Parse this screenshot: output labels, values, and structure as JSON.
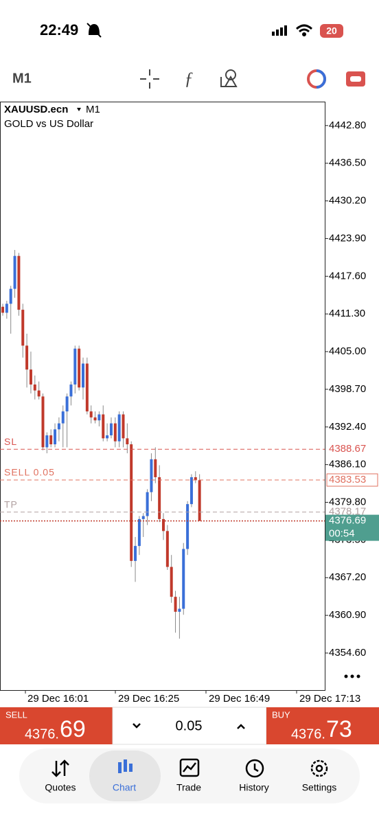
{
  "status_bar": {
    "time": "22:49",
    "battery": "20"
  },
  "toolbar": {
    "timeframe": "M1"
  },
  "chart_data": {
    "type": "candlestick",
    "symbol": "XAUUSD.ecn",
    "timeframe": "M1",
    "description": "GOLD vs US Dollar",
    "up_color": "#3a6fd8",
    "down_color": "#c0392b",
    "open": [
      4412.5,
      4411.5,
      4413,
      4415.5,
      4421,
      4412,
      4406,
      4402,
      4399.5,
      4398.5,
      4397.5,
      4389,
      4391,
      4389.5,
      4392,
      4393,
      4395,
      4397.5,
      4399.5,
      4405.5,
      4399,
      4403,
      4395,
      4394,
      4393.5,
      4394.5,
      4390.5,
      4391,
      4393,
      4390,
      4394.5,
      4390.5,
      4389.5,
      4370,
      4372.5,
      4377,
      4377.5,
      4381.5,
      4387,
      4384,
      4377,
      4375,
      4369,
      4364,
      4361.5,
      4362,
      4372,
      4379.5,
      4384,
      4383.5
    ],
    "high": [
      4413,
      4413.5,
      4416,
      4422,
      4421.5,
      4413,
      4408,
      4405,
      4401,
      4400,
      4398,
      4391.5,
      4392,
      4393,
      4394,
      4396,
      4398,
      4400,
      4406,
      4406,
      4404,
      4404,
      4396,
      4395,
      4395,
      4396,
      4393,
      4394,
      4394,
      4395,
      4395,
      4393,
      4390,
      4374,
      4377.5,
      4378,
      4382,
      4388,
      4389,
      4386,
      4378,
      4376,
      4371,
      4365,
      4364,
      4373,
      4380,
      4384.5,
      4385,
      4384.5
    ],
    "low": [
      4411,
      4410.5,
      4408,
      4414,
      4411,
      4404,
      4399,
      4398,
      4397,
      4397,
      4388.5,
      4388,
      4389,
      4389,
      4390,
      4389,
      4389,
      4396,
      4398,
      4398.5,
      4397,
      4394.5,
      4393,
      4393,
      4392.5,
      4390,
      4390,
      4390.5,
      4389,
      4389,
      4389,
      4388,
      4369,
      4366.5,
      4371,
      4374,
      4376,
      4380,
      4383,
      4376.5,
      4373.5,
      4368.5,
      4363,
      4358,
      4357,
      4361,
      4371,
      4379,
      4383,
      4376.7
    ],
    "close": [
      4411.5,
      4413,
      4415.5,
      4421,
      4412,
      4406,
      4402,
      4399.5,
      4398.5,
      4397.5,
      4389,
      4391,
      4389.5,
      4392,
      4393,
      4395,
      4397.5,
      4399.5,
      4405.5,
      4399,
      4403,
      4395,
      4394,
      4393.5,
      4394.5,
      4390.5,
      4391,
      4393,
      4390,
      4394.5,
      4390.5,
      4389.5,
      4370,
      4372.5,
      4377,
      4377.5,
      4381.5,
      4387,
      4384,
      4377,
      4375,
      4369,
      4364,
      4361.5,
      4362,
      4372,
      4379.5,
      4384,
      4383.5,
      4376.69
    ],
    "ylim": [
      4348.4,
      4446.8
    ],
    "yticks": [
      {
        "value": 4442.8,
        "label": "4442.80"
      },
      {
        "value": 4436.5,
        "label": "4436.50"
      },
      {
        "value": 4430.2,
        "label": "4430.20"
      },
      {
        "value": 4423.9,
        "label": "4423.90"
      },
      {
        "value": 4417.6,
        "label": "4417.60"
      },
      {
        "value": 4411.3,
        "label": "4411.30"
      },
      {
        "value": 4405,
        "label": "4405.00"
      },
      {
        "value": 4398.7,
        "label": "4398.70"
      },
      {
        "value": 4392.4,
        "label": "4392.40"
      },
      {
        "value": 4386.1,
        "label": "4386.10"
      },
      {
        "value": 4379.8,
        "label": "4379.80"
      },
      {
        "value": 4373.5,
        "label": "4373.50"
      },
      {
        "value": 4367.2,
        "label": "4367.20"
      },
      {
        "value": 4360.9,
        "label": "4360.90"
      },
      {
        "value": 4354.6,
        "label": "4354.60"
      }
    ],
    "x_labels": [
      "29 Dec 16:01",
      "29 Dec 16:25",
      "29 Dec 16:49",
      "29 Dec 17:13"
    ],
    "levels": [
      {
        "name": "SL",
        "value": 4388.67,
        "color": "#d9534f"
      },
      {
        "name": "SELL 0.05",
        "value": 4383.53,
        "color": "#e0705f"
      },
      {
        "name": "TP",
        "value": 4378.17,
        "color": "#b0a0a0"
      }
    ],
    "bid": 4376.69,
    "bid_color": "#4f9e8f",
    "countdown": "00:54"
  },
  "trade_panel": {
    "sell_label": "SELL",
    "sell_main": "4376.",
    "sell_big": "69",
    "volume": "0.05",
    "buy_label": "BUY",
    "buy_main": "4376.",
    "buy_big": "73"
  },
  "nav": [
    "Quotes",
    "Chart",
    "Trade",
    "History",
    "Settings"
  ]
}
